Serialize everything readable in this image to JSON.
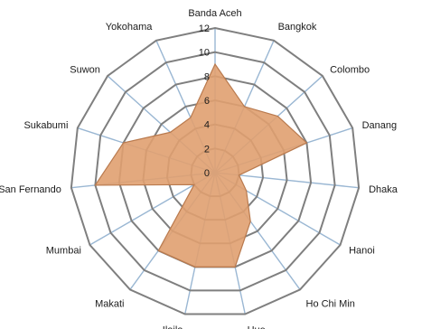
{
  "chart_data": {
    "type": "radar",
    "title": "",
    "categories": [
      "Banda Aceh",
      "Bangkok",
      "Colombo",
      "Danang",
      "Dhaka",
      "Hanoi",
      "Ho Chi Min",
      "Hue",
      "Iloilo",
      "Makati",
      "Mumbai",
      "San Fernando",
      "Sukabumi",
      "Suwon",
      "Yokohama"
    ],
    "series": [
      {
        "values": [
          9,
          6,
          7,
          8,
          2,
          3,
          5,
          8,
          8,
          8,
          2,
          10,
          8,
          5,
          5
        ],
        "color": "#e0a070"
      }
    ],
    "rlim": [
      0,
      12
    ],
    "ticks": [
      0,
      2,
      4,
      6,
      8,
      10,
      12
    ],
    "grid": true,
    "legend": "none"
  }
}
